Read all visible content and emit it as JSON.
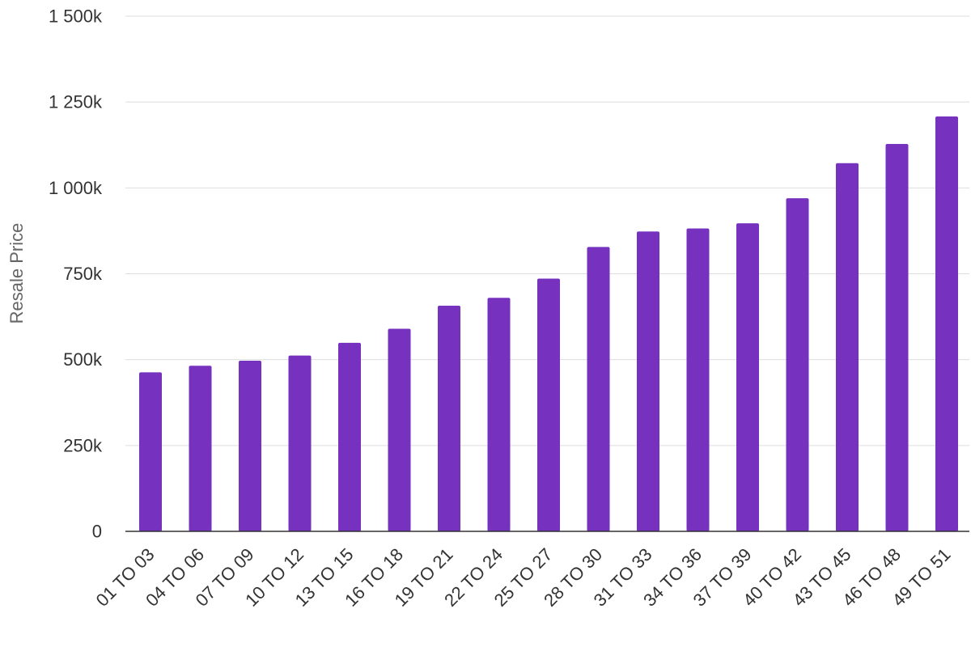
{
  "chart_data": {
    "type": "bar",
    "title": "",
    "xlabel": "",
    "ylabel": "Resale Price",
    "ylim": [
      0,
      1500000
    ],
    "grid": true,
    "legend": "none",
    "bar_color": "#7631bf",
    "yticks": [
      0,
      250000,
      500000,
      750000,
      1000000,
      1250000,
      1500000
    ],
    "ytick_labels": [
      "0",
      "250k",
      "500k",
      "750k",
      "1 000k",
      "1 250k",
      "1 500k"
    ],
    "categories": [
      "01 TO 03",
      "04 TO 06",
      "07 TO 09",
      "10 TO 12",
      "13 TO 15",
      "16 TO 18",
      "19 TO 21",
      "22 TO 24",
      "25 TO 27",
      "28 TO 30",
      "31 TO 33",
      "34 TO 36",
      "37 TO 39",
      "40 TO 42",
      "43 TO 45",
      "46 TO 48",
      "49 TO 51"
    ],
    "values": [
      463000,
      482000,
      497000,
      512000,
      549000,
      590000,
      657000,
      680000,
      736000,
      828000,
      873000,
      882000,
      897000,
      970000,
      1072000,
      1128000,
      1208000
    ]
  }
}
